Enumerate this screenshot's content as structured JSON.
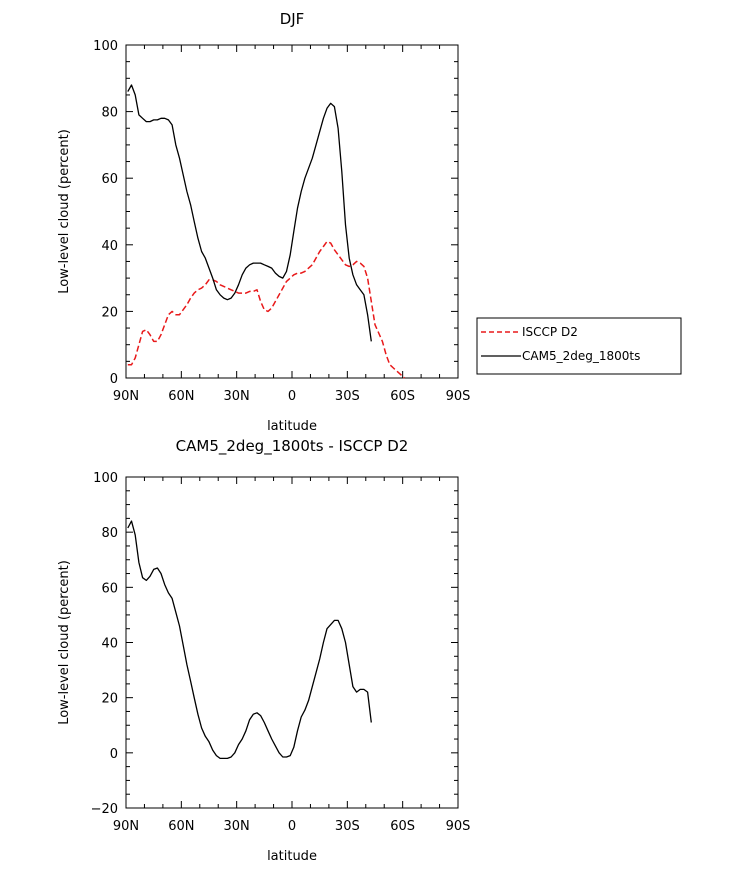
{
  "chart_data": [
    {
      "type": "line",
      "title": "DJF",
      "xlabel": "latitude",
      "ylabel": "Low-level cloud (percent)",
      "xlim": [
        90,
        -90
      ],
      "ylim": [
        0,
        100
      ],
      "x_ticks": [
        90,
        60,
        30,
        0,
        -30,
        -60,
        -90
      ],
      "x_tick_labels": [
        "90N",
        "60N",
        "30N",
        "0",
        "30S",
        "60S",
        "90S"
      ],
      "y_ticks": [
        0,
        20,
        40,
        60,
        80,
        100
      ],
      "y_tick_labels": [
        "0",
        "20",
        "40",
        "60",
        "80",
        "100"
      ],
      "legend_position": "right",
      "series": [
        {
          "name": "ISCCP D2",
          "color": "#e8191a",
          "dash": "dashed",
          "points": [
            [
              89,
              4
            ],
            [
              87,
              4
            ],
            [
              85,
              6
            ],
            [
              83,
              10
            ],
            [
              81,
              14
            ],
            [
              79,
              14.5
            ],
            [
              77,
              13
            ],
            [
              75,
              11
            ],
            [
              73,
              11
            ],
            [
              71,
              13
            ],
            [
              69,
              16
            ],
            [
              67,
              19
            ],
            [
              65,
              20
            ],
            [
              63,
              19
            ],
            [
              61,
              19
            ],
            [
              59,
              20.5
            ],
            [
              57,
              22
            ],
            [
              55,
              24
            ],
            [
              53,
              25.5
            ],
            [
              51,
              26.5
            ],
            [
              49,
              27
            ],
            [
              47,
              28
            ],
            [
              45,
              29.5
            ],
            [
              43,
              29.5
            ],
            [
              41,
              29
            ],
            [
              39,
              28
            ],
            [
              37,
              27.5
            ],
            [
              35,
              27
            ],
            [
              33,
              26.5
            ],
            [
              31,
              26
            ],
            [
              29,
              25.5
            ],
            [
              27,
              25.5
            ],
            [
              25,
              25.5
            ],
            [
              23,
              26
            ],
            [
              21,
              26
            ],
            [
              19,
              26.5
            ],
            [
              17,
              23
            ],
            [
              15,
              20.5
            ],
            [
              13,
              20
            ],
            [
              11,
              21
            ],
            [
              9,
              23
            ],
            [
              7,
              25
            ],
            [
              5,
              27
            ],
            [
              3,
              29
            ],
            [
              1,
              30
            ],
            [
              -1,
              31
            ],
            [
              -3,
              31.5
            ],
            [
              -5,
              31.5
            ],
            [
              -7,
              32
            ],
            [
              -9,
              33
            ],
            [
              -11,
              34
            ],
            [
              -13,
              36
            ],
            [
              -15,
              38
            ],
            [
              -17,
              39.5
            ],
            [
              -19,
              41
            ],
            [
              -21,
              40.5
            ],
            [
              -23,
              38.5
            ],
            [
              -25,
              37
            ],
            [
              -27,
              35.5
            ],
            [
              -29,
              34
            ],
            [
              -31,
              33.5
            ],
            [
              -33,
              34
            ],
            [
              -35,
              35
            ],
            [
              -37,
              34.5
            ],
            [
              -39,
              33.5
            ],
            [
              -41,
              30
            ],
            [
              -43,
              23
            ],
            [
              -45,
              16
            ],
            [
              -47,
              13.5
            ],
            [
              -49,
              11
            ],
            [
              -51,
              7
            ],
            [
              -53,
              4
            ],
            [
              -55,
              3
            ],
            [
              -57,
              2
            ],
            [
              -59,
              1
            ],
            [
              -61,
              0
            ]
          ]
        },
        {
          "name": "CAM5_2deg_1800ts",
          "color": "#000000",
          "dash": "solid",
          "points": [
            [
              89,
              86
            ],
            [
              87,
              88
            ],
            [
              85,
              85
            ],
            [
              83,
              79
            ],
            [
              81,
              78
            ],
            [
              79,
              77
            ],
            [
              77,
              77
            ],
            [
              75,
              77.5
            ],
            [
              73,
              77.5
            ],
            [
              71,
              78
            ],
            [
              69,
              78
            ],
            [
              67,
              77.5
            ],
            [
              65,
              76
            ],
            [
              63,
              70
            ],
            [
              61,
              66
            ],
            [
              59,
              61
            ],
            [
              57,
              56
            ],
            [
              55,
              52
            ],
            [
              53,
              47
            ],
            [
              51,
              42
            ],
            [
              49,
              38
            ],
            [
              47,
              36
            ],
            [
              45,
              33
            ],
            [
              43,
              30
            ],
            [
              41,
              26.5
            ],
            [
              39,
              25
            ],
            [
              37,
              24
            ],
            [
              35,
              23.5
            ],
            [
              33,
              24
            ],
            [
              31,
              25.5
            ],
            [
              29,
              28
            ],
            [
              27,
              31
            ],
            [
              25,
              33
            ],
            [
              23,
              34
            ],
            [
              21,
              34.5
            ],
            [
              19,
              34.5
            ],
            [
              17,
              34.5
            ],
            [
              15,
              34
            ],
            [
              13,
              33.5
            ],
            [
              11,
              33
            ],
            [
              9,
              31.5
            ],
            [
              7,
              30.5
            ],
            [
              5,
              30
            ],
            [
              3,
              32
            ],
            [
              1,
              37
            ],
            [
              -1,
              44
            ],
            [
              -3,
              51
            ],
            [
              -5,
              56
            ],
            [
              -7,
              60
            ],
            [
              -9,
              63
            ],
            [
              -11,
              66
            ],
            [
              -13,
              70
            ],
            [
              -15,
              74
            ],
            [
              -17,
              78
            ],
            [
              -19,
              81
            ],
            [
              -21,
              82.5
            ],
            [
              -23,
              81.5
            ],
            [
              -25,
              75
            ],
            [
              -27,
              62
            ],
            [
              -29,
              46
            ],
            [
              -31,
              36
            ],
            [
              -33,
              31
            ],
            [
              -35,
              28
            ],
            [
              -37,
              26.5
            ],
            [
              -39,
              25
            ],
            [
              -41,
              19
            ],
            [
              -43,
              11
            ]
          ]
        }
      ]
    },
    {
      "type": "line",
      "title": "CAM5_2deg_1800ts - ISCCP D2",
      "xlabel": "latitude",
      "ylabel": "Low-level cloud (percent)",
      "xlim": [
        90,
        -90
      ],
      "ylim": [
        -20,
        100
      ],
      "x_ticks": [
        90,
        60,
        30,
        0,
        -30,
        -60,
        -90
      ],
      "x_tick_labels": [
        "90N",
        "60N",
        "30N",
        "0",
        "30S",
        "60S",
        "90S"
      ],
      "y_ticks": [
        -20,
        0,
        20,
        40,
        60,
        80,
        100
      ],
      "y_tick_labels": [
        "−20",
        "0",
        "20",
        "40",
        "60",
        "80",
        "100"
      ],
      "series": [
        {
          "color": "#000000",
          "dash": "solid",
          "points": [
            [
              89,
              81.5
            ],
            [
              87,
              84
            ],
            [
              85,
              79
            ],
            [
              83,
              69
            ],
            [
              81,
              63.5
            ],
            [
              79,
              62.5
            ],
            [
              77,
              64
            ],
            [
              75,
              66.5
            ],
            [
              73,
              67
            ],
            [
              71,
              65
            ],
            [
              69,
              61
            ],
            [
              67,
              58
            ],
            [
              65,
              56
            ],
            [
              63,
              51
            ],
            [
              61,
              46
            ],
            [
              59,
              39
            ],
            [
              57,
              32
            ],
            [
              55,
              26
            ],
            [
              53,
              20
            ],
            [
              51,
              14
            ],
            [
              49,
              9
            ],
            [
              47,
              6
            ],
            [
              45,
              4
            ],
            [
              43,
              1
            ],
            [
              41,
              -1
            ],
            [
              39,
              -2
            ],
            [
              37,
              -2
            ],
            [
              35,
              -2
            ],
            [
              33,
              -1.5
            ],
            [
              31,
              0
            ],
            [
              29,
              3
            ],
            [
              27,
              5
            ],
            [
              25,
              8
            ],
            [
              23,
              12
            ],
            [
              21,
              14
            ],
            [
              19,
              14.5
            ],
            [
              17,
              13.5
            ],
            [
              15,
              11
            ],
            [
              13,
              8
            ],
            [
              11,
              5
            ],
            [
              9,
              2.5
            ],
            [
              7,
              0
            ],
            [
              5,
              -1.5
            ],
            [
              3,
              -1.5
            ],
            [
              1,
              -1
            ],
            [
              -1,
              2
            ],
            [
              -3,
              8
            ],
            [
              -5,
              13
            ],
            [
              -7,
              15.5
            ],
            [
              -9,
              19
            ],
            [
              -11,
              24
            ],
            [
              -13,
              29
            ],
            [
              -15,
              34
            ],
            [
              -17,
              40
            ],
            [
              -19,
              45
            ],
            [
              -21,
              46.5
            ],
            [
              -23,
              48
            ],
            [
              -25,
              48
            ],
            [
              -27,
              45
            ],
            [
              -29,
              40
            ],
            [
              -31,
              32
            ],
            [
              -33,
              24
            ],
            [
              -35,
              22
            ],
            [
              -37,
              23
            ],
            [
              -39,
              23
            ],
            [
              -41,
              22
            ],
            [
              -43,
              11
            ]
          ]
        }
      ]
    }
  ]
}
